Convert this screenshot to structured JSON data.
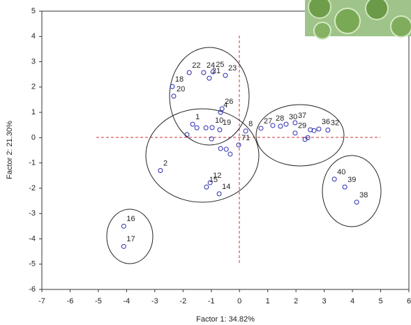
{
  "chart_data": {
    "type": "scatter",
    "x_label": "Factor 1: 34.82%",
    "y_label": "Factor 2: 21.30%",
    "x": [
      -4.1,
      -4.1,
      -2.8,
      -1.78,
      -1.27,
      -0.94,
      -1.07,
      -0.5,
      -2.38,
      -2.33,
      -0.62,
      -1.66,
      -0.67,
      -0.97,
      -0.7,
      -0.03,
      0.22,
      -1.04,
      -1.17,
      -0.72,
      0.76,
      1.18,
      1.65,
      1.97,
      1.97,
      2.81,
      3.13,
      3.36,
      3.73,
      4.15,
      -1.51,
      -1.19,
      -1.86,
      -0.99,
      -0.67,
      -0.47,
      -0.33,
      2.32,
      2.42,
      2.51,
      2.64,
      1.45
    ],
    "values": [
      -3.5,
      -4.3,
      -1.3,
      2.57,
      2.57,
      2.6,
      2.35,
      2.46,
      2.02,
      1.64,
      1.14,
      0.53,
      1.0,
      0.4,
      0.31,
      -0.29,
      0.26,
      -1.78,
      -1.95,
      -2.22,
      0.37,
      0.48,
      0.53,
      0.59,
      0.18,
      0.34,
      0.3,
      -1.64,
      -1.95,
      -2.55,
      0.39,
      0.39,
      0.12,
      -0.05,
      -0.43,
      -0.46,
      -0.65,
      -0.07,
      0.0,
      0.31,
      0.28,
      0.45
    ],
    "point_labels": [
      "16",
      "17",
      "2",
      "22",
      "24",
      "25",
      "21",
      "23",
      "18",
      "20",
      "26",
      "1",
      "4",
      "10",
      "19",
      "71",
      "8",
      "12",
      "15",
      "14",
      "27",
      "28",
      "30",
      "37",
      "29",
      "36",
      "32",
      "40",
      "39",
      "38",
      null,
      null,
      null,
      null,
      null,
      null,
      null,
      null,
      null,
      null,
      null,
      null
    ],
    "color": "#2a2ab0",
    "xlim": [
      -7,
      6
    ],
    "xticks": [
      -7,
      -6,
      -5,
      -4,
      -3,
      -2,
      -1,
      0,
      1,
      2,
      3,
      4,
      5,
      6
    ],
    "ylim": [
      -6,
      5
    ],
    "yticks": [
      -6,
      -5,
      -4,
      -3,
      -2,
      -1,
      0,
      1,
      2,
      3,
      4,
      5
    ]
  }
}
